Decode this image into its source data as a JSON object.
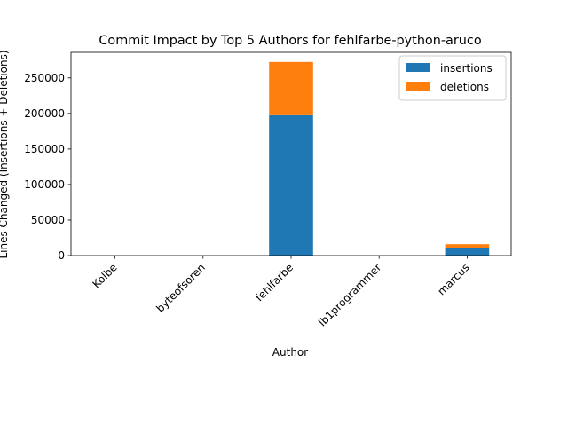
{
  "chart_data": {
    "type": "bar",
    "stacked": true,
    "title": "Commit Impact by Top 5 Authors for fehlfarbe-python-aruco",
    "xlabel": "Author",
    "ylabel": "Lines Changed (Insertions + Deletions)",
    "categories": [
      "Kolbe",
      "byteofsoren",
      "fehlfarbe",
      "lb1programmer",
      "marcus"
    ],
    "series": [
      {
        "name": "insertions",
        "color": "#1f77b4",
        "values": [
          0,
          0,
          197500,
          0,
          10000
        ]
      },
      {
        "name": "deletions",
        "color": "#ff7f0e",
        "values": [
          0,
          0,
          75000,
          0,
          6000
        ]
      }
    ],
    "ylim": [
      0,
      286000
    ],
    "yticks": [
      0,
      50000,
      100000,
      150000,
      200000,
      250000
    ],
    "ytick_labels": [
      "0",
      "50000",
      "100000",
      "150000",
      "200000",
      "250000"
    ],
    "legend_position": "top-right",
    "grid": false
  }
}
